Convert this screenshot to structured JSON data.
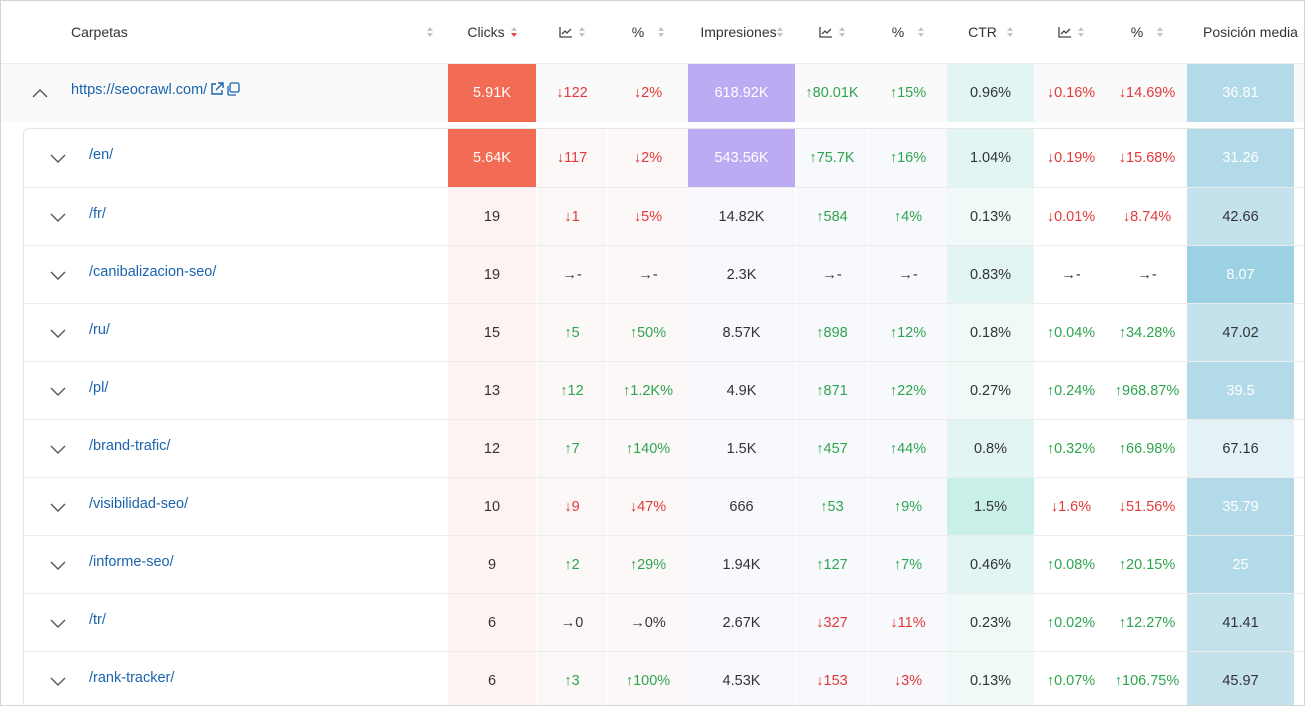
{
  "header": {
    "folders": "Carpetas",
    "clicks": "Clicks",
    "clicks_pct": "%",
    "impressions": "Impresiones",
    "impressions_pct": "%",
    "ctr": "CTR",
    "ctr_pct": "%",
    "position": "Posición media"
  },
  "root": {
    "name": "https://seocrawl.com/",
    "clicks": "5.91K",
    "clicks_delta": "↓122",
    "clicks_pct": "↓2%",
    "impressions": "618.92K",
    "imp_delta": "↑80.01K",
    "imp_pct": "↑15%",
    "ctr": "0.96%",
    "ctr_delta": "↓0.16%",
    "ctr_pct": "↓14.69%",
    "position": "36.81"
  },
  "rows": [
    {
      "name": "/en/",
      "clicks": "5.64K",
      "clicks_delta": "↓117",
      "clicks_pct": "↓2%",
      "impressions": "543.56K",
      "imp_delta": "↑75.7K",
      "imp_pct": "↑16%",
      "ctr": "1.04%",
      "ctr_delta": "↓0.19%",
      "ctr_pct": "↓15.68%",
      "position": "31.26"
    },
    {
      "name": "/fr/",
      "clicks": "19",
      "clicks_delta": "↓1",
      "clicks_pct": "↓5%",
      "impressions": "14.82K",
      "imp_delta": "↑584",
      "imp_pct": "↑4%",
      "ctr": "0.13%",
      "ctr_delta": "↓0.01%",
      "ctr_pct": "↓8.74%",
      "position": "42.66"
    },
    {
      "name": "/canibalizacion-seo/",
      "clicks": "19",
      "clicks_delta": "→-",
      "clicks_pct": "→-",
      "impressions": "2.3K",
      "imp_delta": "→-",
      "imp_pct": "→-",
      "ctr": "0.83%",
      "ctr_delta": "→-",
      "ctr_pct": "→-",
      "position": "8.07"
    },
    {
      "name": "/ru/",
      "clicks": "15",
      "clicks_delta": "↑5",
      "clicks_pct": "↑50%",
      "impressions": "8.57K",
      "imp_delta": "↑898",
      "imp_pct": "↑12%",
      "ctr": "0.18%",
      "ctr_delta": "↑0.04%",
      "ctr_pct": "↑34.28%",
      "position": "47.02"
    },
    {
      "name": "/pl/",
      "clicks": "13",
      "clicks_delta": "↑12",
      "clicks_pct": "↑1.2K%",
      "impressions": "4.9K",
      "imp_delta": "↑871",
      "imp_pct": "↑22%",
      "ctr": "0.27%",
      "ctr_delta": "↑0.24%",
      "ctr_pct": "↑968.87%",
      "position": "39.5"
    },
    {
      "name": "/brand-trafic/",
      "clicks": "12",
      "clicks_delta": "↑7",
      "clicks_pct": "↑140%",
      "impressions": "1.5K",
      "imp_delta": "↑457",
      "imp_pct": "↑44%",
      "ctr": "0.8%",
      "ctr_delta": "↑0.32%",
      "ctr_pct": "↑66.98%",
      "position": "67.16"
    },
    {
      "name": "/visibilidad-seo/",
      "clicks": "10",
      "clicks_delta": "↓9",
      "clicks_pct": "↓47%",
      "impressions": "666",
      "imp_delta": "↑53",
      "imp_pct": "↑9%",
      "ctr": "1.5%",
      "ctr_delta": "↓1.6%",
      "ctr_pct": "↓51.56%",
      "position": "35.79"
    },
    {
      "name": "/informe-seo/",
      "clicks": "9",
      "clicks_delta": "↑2",
      "clicks_pct": "↑29%",
      "impressions": "1.94K",
      "imp_delta": "↑127",
      "imp_pct": "↑7%",
      "ctr": "0.46%",
      "ctr_delta": "↑0.08%",
      "ctr_pct": "↑20.15%",
      "position": "25"
    },
    {
      "name": "/tr/",
      "clicks": "6",
      "clicks_delta": "→0",
      "clicks_pct": "→0%",
      "impressions": "2.67K",
      "imp_delta": "↓327",
      "imp_pct": "↓11%",
      "ctr": "0.23%",
      "ctr_delta": "↑0.02%",
      "ctr_pct": "↑12.27%",
      "position": "41.41"
    },
    {
      "name": "/rank-tracker/",
      "clicks": "6",
      "clicks_delta": "↑3",
      "clicks_pct": "↑100%",
      "impressions": "4.53K",
      "imp_delta": "↓153",
      "imp_pct": "↓3%",
      "ctr": "0.13%",
      "ctr_delta": "↑0.07%",
      "ctr_pct": "↑106.75%",
      "position": "45.97"
    }
  ],
  "colors": {
    "link": "#1a63ad",
    "up": "#2fa44f",
    "down": "#e03a3a",
    "clicks_heat": "#f26b55",
    "impressions_heat": "#bcaaf3",
    "ctr_tint": "#e2f5f3",
    "position_tint": "#c3e2ec",
    "sort_active": "#e8434e"
  },
  "icons": {
    "expand": "chevron-down-icon",
    "collapse": "chevron-up-icon",
    "external": "external-link-icon",
    "copy": "copy-icon",
    "trend": "trend-chart-icon",
    "sort": "sort-icon"
  }
}
